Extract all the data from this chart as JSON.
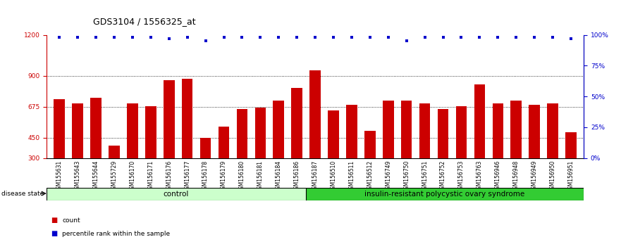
{
  "title": "GDS3104 / 1556325_at",
  "samples": [
    "GSM155631",
    "GSM155643",
    "GSM155644",
    "GSM155729",
    "GSM156170",
    "GSM156171",
    "GSM156176",
    "GSM156177",
    "GSM156178",
    "GSM156179",
    "GSM156180",
    "GSM156181",
    "GSM156184",
    "GSM156186",
    "GSM156187",
    "GSM156510",
    "GSM156511",
    "GSM156512",
    "GSM156749",
    "GSM156750",
    "GSM156751",
    "GSM156752",
    "GSM156753",
    "GSM156763",
    "GSM156946",
    "GSM156948",
    "GSM156949",
    "GSM156950",
    "GSM156951"
  ],
  "bar_values": [
    730,
    700,
    740,
    390,
    700,
    680,
    870,
    880,
    450,
    530,
    660,
    670,
    720,
    810,
    940,
    650,
    690,
    500,
    720,
    720,
    700,
    660,
    680,
    840,
    700,
    720,
    690,
    700,
    490
  ],
  "percentile_values": [
    98,
    98,
    98,
    98,
    98,
    98,
    97,
    98,
    95,
    98,
    98,
    98,
    98,
    98,
    98,
    98,
    98,
    98,
    98,
    95,
    98,
    98,
    98,
    98,
    98,
    98,
    98,
    98,
    97
  ],
  "bar_color": "#cc0000",
  "percentile_color": "#0000cc",
  "ylim_left": [
    300,
    1200
  ],
  "ylim_right": [
    0,
    100
  ],
  "yticks_left": [
    300,
    450,
    675,
    900,
    1200
  ],
  "yticks_right": [
    0,
    25,
    50,
    75,
    100
  ],
  "grid_values": [
    450,
    675,
    900
  ],
  "control_count": 14,
  "disease_count": 15,
  "control_label": "control",
  "disease_label": "insulin-resistant polycystic ovary syndrome",
  "disease_state_label": "disease state",
  "legend_count_label": "count",
  "legend_percentile_label": "percentile rank within the sample",
  "control_bg": "#ccffcc",
  "disease_bg": "#33cc33",
  "bar_width": 0.6,
  "title_fontsize": 9,
  "tick_fontsize": 6.5
}
